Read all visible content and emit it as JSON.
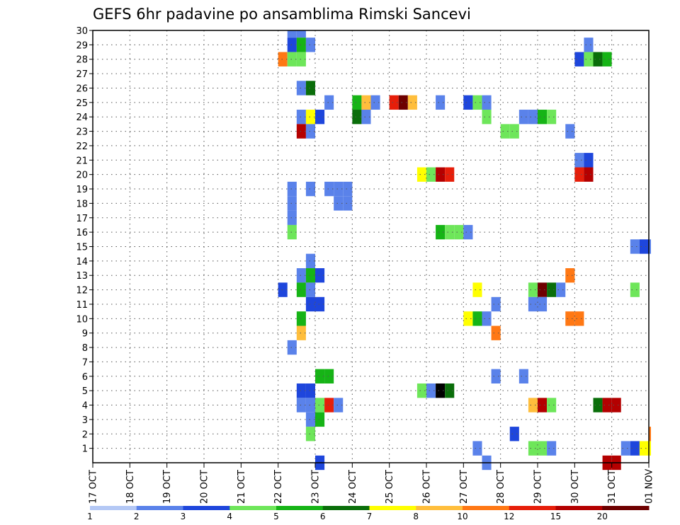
{
  "chart_data": {
    "type": "heatmap",
    "title": "GEFS 6hr padavine po ansamblima Rimski Sancevi",
    "xlabel": "",
    "ylabel": "",
    "x_tick_labels": [
      "17 OCT",
      "18 OCT",
      "19 OCT",
      "20 OCT",
      "21 OCT",
      "22 OCT",
      "23 OCT",
      "24 OCT",
      "25 OCT",
      "26 OCT",
      "27 OCT",
      "28 OCT",
      "29 OCT",
      "30 OCT",
      "31 OCT",
      "01 NOV"
    ],
    "y_tick_labels": [
      "1",
      "2",
      "3",
      "4",
      "5",
      "6",
      "7",
      "8",
      "9",
      "10",
      "11",
      "12",
      "13",
      "14",
      "15",
      "16",
      "17",
      "18",
      "19",
      "20",
      "21",
      "22",
      "23",
      "24",
      "25",
      "26",
      "27",
      "28",
      "29",
      "30"
    ],
    "xlim_days": [
      0,
      15
    ],
    "x_step_hours": 6,
    "ylim": [
      0,
      30
    ],
    "grid": true,
    "legend_position": "bottom",
    "legend": {
      "bounds": [
        "1",
        "2",
        "3",
        "4",
        "5",
        "6",
        "7",
        "8",
        "10",
        "12",
        "15",
        "20"
      ],
      "colors": [
        "#b4c8f5",
        "#5a82ea",
        "#1e46dc",
        "#6ee65a",
        "#16b416",
        "#0a6e0a",
        "#ffff00",
        "#ffbe3c",
        "#ff7814",
        "#e61e0a",
        "#b40000",
        "#6e0000"
      ]
    },
    "cells": [
      [
        5.25,
        30,
        1
      ],
      [
        5.5,
        30,
        1
      ],
      [
        5.25,
        29,
        2
      ],
      [
        5.5,
        29,
        4
      ],
      [
        5.75,
        29,
        1
      ],
      [
        5,
        28,
        8
      ],
      [
        5.25,
        28,
        3
      ],
      [
        5.5,
        28,
        3
      ],
      [
        5.5,
        26,
        1
      ],
      [
        5.75,
        26,
        5
      ],
      [
        6.25,
        25,
        1
      ],
      [
        7,
        25,
        4
      ],
      [
        7.25,
        25,
        7
      ],
      [
        7.5,
        25,
        1
      ],
      [
        8,
        25,
        9
      ],
      [
        8.25,
        25,
        11
      ],
      [
        8.5,
        25,
        7
      ],
      [
        9.25,
        25,
        1
      ],
      [
        5.5,
        24,
        1
      ],
      [
        5.75,
        24,
        6
      ],
      [
        6,
        24,
        2
      ],
      [
        7,
        24,
        5
      ],
      [
        7.25,
        24,
        1
      ],
      [
        5.5,
        23,
        10
      ],
      [
        5.75,
        23,
        1
      ],
      [
        6.25,
        19,
        1
      ],
      [
        5.25,
        19,
        1
      ],
      [
        5.75,
        19,
        1
      ],
      [
        6.5,
        19,
        1
      ],
      [
        6.75,
        19,
        1
      ],
      [
        6.5,
        18,
        1
      ],
      [
        6.75,
        18,
        1
      ],
      [
        5.25,
        18,
        1
      ],
      [
        5.25,
        17,
        1
      ],
      [
        5.25,
        16,
        3
      ],
      [
        9.25,
        16,
        4
      ],
      [
        9.5,
        16,
        3
      ],
      [
        9.75,
        16,
        3
      ],
      [
        10,
        16,
        1
      ],
      [
        8.75,
        20,
        6
      ],
      [
        9,
        20,
        3
      ],
      [
        9.25,
        20,
        10
      ],
      [
        9.5,
        20,
        9
      ],
      [
        10,
        25,
        2
      ],
      [
        10.25,
        25,
        3
      ],
      [
        10.5,
        25,
        1
      ],
      [
        10.5,
        24,
        3
      ],
      [
        11,
        23,
        3
      ],
      [
        11.25,
        23,
        3
      ],
      [
        11.5,
        24,
        1
      ],
      [
        11.75,
        24,
        1
      ],
      [
        12,
        24,
        4
      ],
      [
        12.25,
        24,
        3
      ],
      [
        12.75,
        23,
        1
      ],
      [
        13,
        21,
        1
      ],
      [
        13.25,
        21,
        2
      ],
      [
        13,
        20,
        9
      ],
      [
        13.25,
        20,
        10
      ],
      [
        13.25,
        29,
        1
      ],
      [
        13,
        28,
        2
      ],
      [
        13.25,
        28,
        3
      ],
      [
        13.5,
        28,
        5
      ],
      [
        13.75,
        28,
        4
      ],
      [
        14.5,
        15,
        1
      ],
      [
        14.75,
        15,
        2
      ],
      [
        15,
        15,
        1
      ],
      [
        5.75,
        14,
        1
      ],
      [
        5.5,
        13,
        1
      ],
      [
        5.75,
        13,
        4
      ],
      [
        6,
        13,
        2
      ],
      [
        5,
        12,
        2
      ],
      [
        5.5,
        12,
        4
      ],
      [
        5.75,
        12,
        1
      ],
      [
        5.75,
        11,
        2
      ],
      [
        6,
        11,
        2
      ],
      [
        5.5,
        10,
        4
      ],
      [
        5.5,
        9,
        7
      ],
      [
        5.25,
        8,
        1
      ],
      [
        6,
        6,
        4
      ],
      [
        6.25,
        6,
        4
      ],
      [
        5.5,
        5,
        2
      ],
      [
        5.75,
        5,
        2
      ],
      [
        5.5,
        4,
        1
      ],
      [
        5.75,
        4,
        1
      ],
      [
        6,
        4,
        3
      ],
      [
        6.25,
        4,
        9
      ],
      [
        6.5,
        4,
        1
      ],
      [
        5.75,
        3,
        1
      ],
      [
        6,
        3,
        4
      ],
      [
        5.75,
        2,
        3
      ],
      [
        10.25,
        12,
        6
      ],
      [
        10.75,
        11,
        1
      ],
      [
        10,
        10,
        6
      ],
      [
        10.25,
        10,
        4
      ],
      [
        10.5,
        10,
        1
      ],
      [
        10.75,
        9,
        8
      ],
      [
        10.75,
        6,
        1
      ],
      [
        11.5,
        6,
        1
      ],
      [
        8.75,
        5,
        3
      ],
      [
        9,
        5,
        1
      ],
      [
        9.25,
        5,
        12
      ],
      [
        9.5,
        5,
        5
      ],
      [
        11.75,
        12,
        3
      ],
      [
        12,
        12,
        11
      ],
      [
        12.25,
        12,
        5
      ],
      [
        12.5,
        12,
        1
      ],
      [
        11.75,
        11,
        1
      ],
      [
        12,
        11,
        1
      ],
      [
        12.75,
        13,
        8
      ],
      [
        12.75,
        10,
        8
      ],
      [
        13,
        10,
        8
      ],
      [
        11.75,
        4,
        7
      ],
      [
        12,
        4,
        10
      ],
      [
        12.25,
        4,
        3
      ],
      [
        13.5,
        4,
        5
      ],
      [
        13.75,
        4,
        10
      ],
      [
        14,
        4,
        10
      ],
      [
        14.5,
        12,
        3
      ],
      [
        11.25,
        2,
        2
      ],
      [
        10.25,
        1,
        1
      ],
      [
        11.75,
        1,
        3
      ],
      [
        12,
        1,
        3
      ],
      [
        12.25,
        1,
        1
      ],
      [
        14.25,
        1,
        1
      ],
      [
        14.5,
        1,
        2
      ],
      [
        14.75,
        1,
        6
      ],
      [
        15,
        1,
        6
      ],
      [
        15,
        2,
        8
      ],
      [
        6,
        0,
        2
      ],
      [
        10.5,
        0,
        1
      ],
      [
        13.75,
        0,
        10
      ],
      [
        14,
        0,
        10
      ]
    ]
  }
}
